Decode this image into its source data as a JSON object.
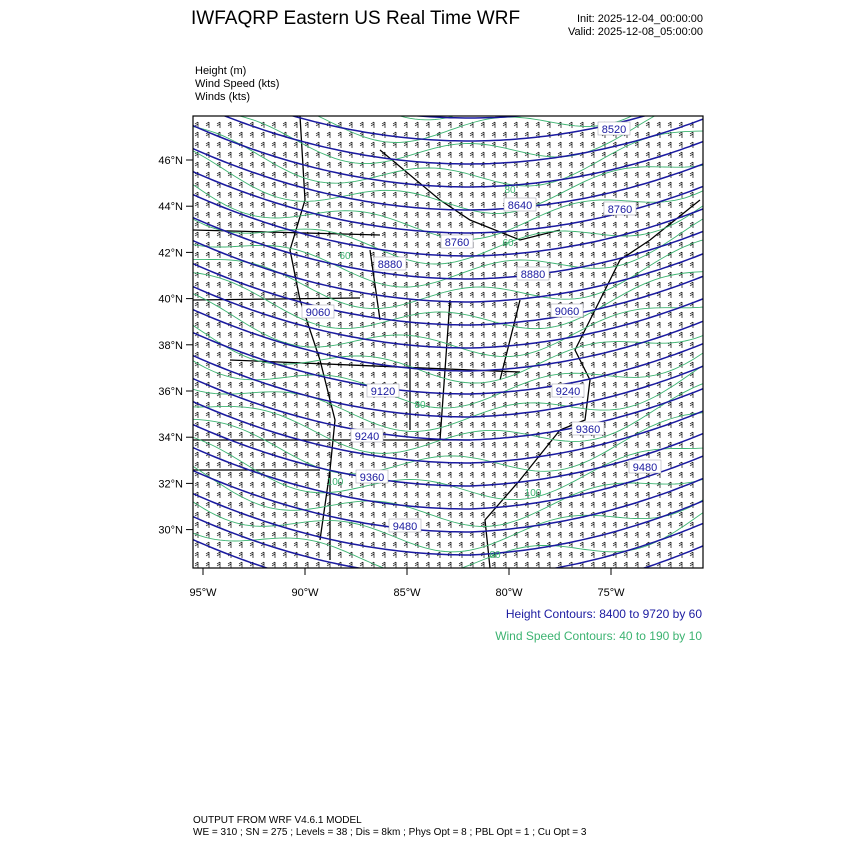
{
  "header": {
    "title": "IWFAQRP Eastern US Real Time WRF",
    "init": "Init: 2025-12-04_00:00:00",
    "valid": "Valid: 2025-12-08_05:00:00"
  },
  "fields": [
    "Height   (m)",
    "Wind Speed   (kts)",
    "Winds   (kts)"
  ],
  "map": {
    "lat_labels": [
      "46°N",
      "44°N",
      "42°N",
      "40°N",
      "38°N",
      "36°N",
      "34°N",
      "32°N",
      "30°N"
    ],
    "lon_labels": [
      "95°W",
      "90°W",
      "85°W",
      "80°W",
      "75°W"
    ],
    "height_contour_labels": [
      "8520",
      "8640",
      "8760",
      "8760",
      "8880",
      "8880",
      "9060",
      "9060",
      "9120",
      "9240",
      "9240",
      "9360",
      "9360",
      "9480",
      "9480"
    ],
    "wind_contour_labels": [
      "60",
      "60",
      "80",
      "80",
      "100",
      "100",
      "80"
    ],
    "colors": {
      "height": "#1a1aa0",
      "wind": "#3cb371",
      "border": "#000000"
    }
  },
  "legend": {
    "height": "Height Contours: 8400 to 9720 by 60",
    "wind": "Wind Speed Contours: 40 to 190 by 10"
  },
  "footer": {
    "line1": "OUTPUT FROM WRF V4.6.1 MODEL",
    "line2": "WE = 310 ; SN = 275 ; Levels = 38 ; Dis = 8km ; Phys Opt = 8 ; PBL Opt = 1 ; Cu Opt = 3"
  }
}
